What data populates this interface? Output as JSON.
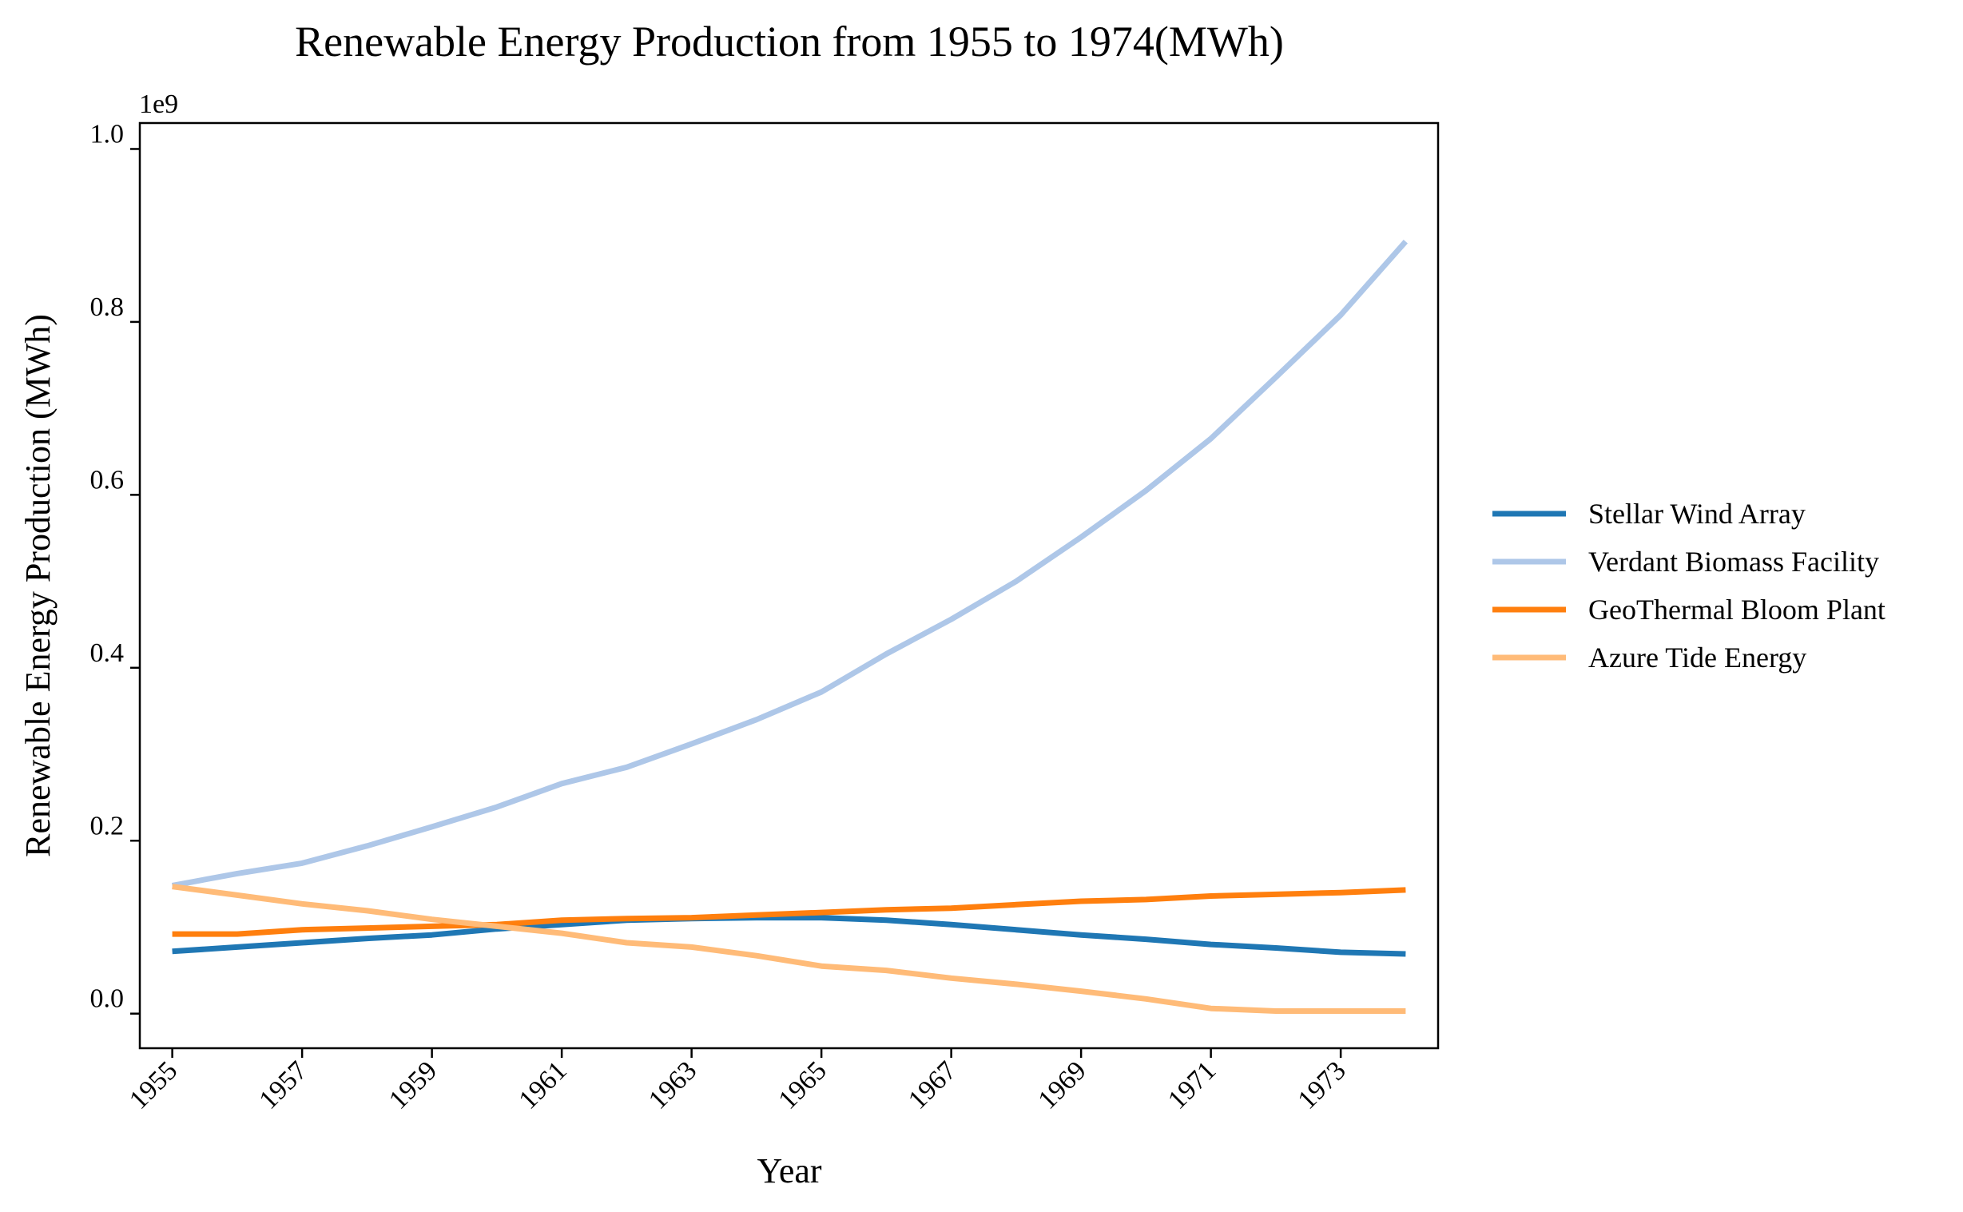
{
  "chart_data": {
    "type": "line",
    "title": "Renewable Energy Production from 1955 to 1974(MWh)",
    "xlabel": "Year",
    "ylabel": "Renewable Energy Production (MWh)",
    "y_offset_label": "1e9",
    "xlim": [
      1954.5,
      1974.5
    ],
    "ylim": [
      -0.04,
      1.03
    ],
    "y_scale_factor": 1000000000,
    "x_ticks": [
      1955,
      1957,
      1959,
      1961,
      1963,
      1965,
      1967,
      1969,
      1971,
      1973
    ],
    "x_tick_labels": [
      "1955",
      "1957",
      "1959",
      "1961",
      "1963",
      "1965",
      "1967",
      "1969",
      "1971",
      "1973"
    ],
    "y_ticks": [
      0.0,
      0.2,
      0.4,
      0.6,
      0.8,
      1.0
    ],
    "y_tick_labels": [
      "0.0",
      "0.2",
      "0.4",
      "0.6",
      "0.8",
      "1.0"
    ],
    "grid": false,
    "legend_position": "right",
    "x": [
      1955,
      1956,
      1957,
      1958,
      1959,
      1960,
      1961,
      1962,
      1963,
      1964,
      1965,
      1966,
      1967,
      1968,
      1969,
      1970,
      1971,
      1972,
      1973,
      1974
    ],
    "series": [
      {
        "name": "Stellar Wind Array",
        "color": "#1f77b4",
        "values": [
          0.072,
          0.077,
          0.082,
          0.087,
          0.091,
          0.098,
          0.103,
          0.108,
          0.11,
          0.111,
          0.111,
          0.108,
          0.103,
          0.097,
          0.091,
          0.086,
          0.08,
          0.076,
          0.071,
          0.069
        ]
      },
      {
        "name": "Verdant Biomass Facility",
        "color": "#aec7e8",
        "values": [
          0.148,
          0.162,
          0.174,
          0.194,
          0.216,
          0.239,
          0.266,
          0.285,
          0.312,
          0.34,
          0.372,
          0.416,
          0.456,
          0.5,
          0.551,
          0.605,
          0.665,
          0.736,
          0.808,
          0.893
        ]
      },
      {
        "name": "GeoThermal Bloom Plant",
        "color": "#ff7f0e",
        "values": [
          0.092,
          0.092,
          0.097,
          0.099,
          0.101,
          0.103,
          0.108,
          0.11,
          0.111,
          0.114,
          0.117,
          0.12,
          0.122,
          0.126,
          0.13,
          0.132,
          0.136,
          0.138,
          0.14,
          0.143
        ]
      },
      {
        "name": "Azure Tide Energy",
        "color": "#ffbb78",
        "values": [
          0.147,
          0.137,
          0.127,
          0.119,
          0.109,
          0.101,
          0.093,
          0.082,
          0.077,
          0.067,
          0.055,
          0.05,
          0.041,
          0.034,
          0.026,
          0.017,
          0.006,
          0.003,
          0.003,
          0.003
        ]
      }
    ]
  }
}
